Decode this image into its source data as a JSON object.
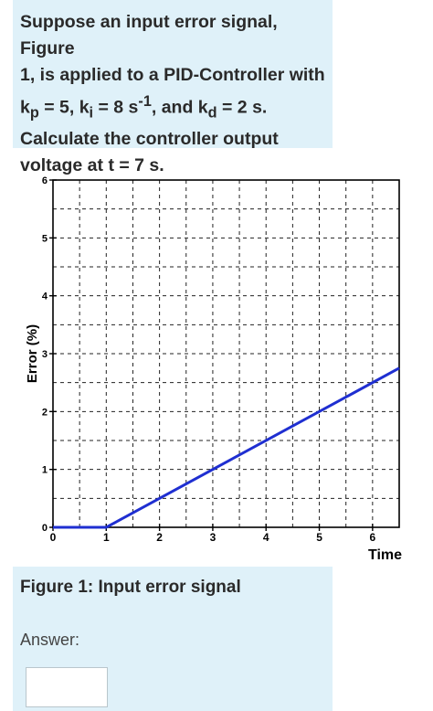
{
  "question": {
    "line1": "Suppose an input error signal, Figure",
    "line2": "1, is applied to a PID-Controller with",
    "kp_sub": "p",
    "kp_val": " = 5, k",
    "ki_sub": "i",
    "ki_val": " = 8 s",
    "ki_exp": "-1",
    "kd_pre": ", and k",
    "kd_sub": "d",
    "kd_val": " = 2 s.",
    "line4": "Calculate the controller output",
    "line5": "voltage at t = 7 s."
  },
  "figure": {
    "caption": "Figure 1: Input error signal"
  },
  "answer": {
    "label": "Answer:",
    "value": ""
  },
  "chart_data": {
    "type": "line",
    "xlabel": "Time",
    "ylabel": "Error (%)",
    "xlim": [
      0,
      6.5
    ],
    "ylim": [
      0,
      6
    ],
    "x_ticks": [
      "0",
      "1",
      "2",
      "3",
      "4",
      "5",
      "6"
    ],
    "y_ticks": [
      "0",
      "1",
      "2",
      "3",
      "4",
      "5",
      "6"
    ],
    "grid": "dashed",
    "series": [
      {
        "x": [
          0,
          1,
          6.5
        ],
        "y": [
          0,
          0,
          2.75
        ],
        "color": "#1f2fd1"
      }
    ]
  }
}
